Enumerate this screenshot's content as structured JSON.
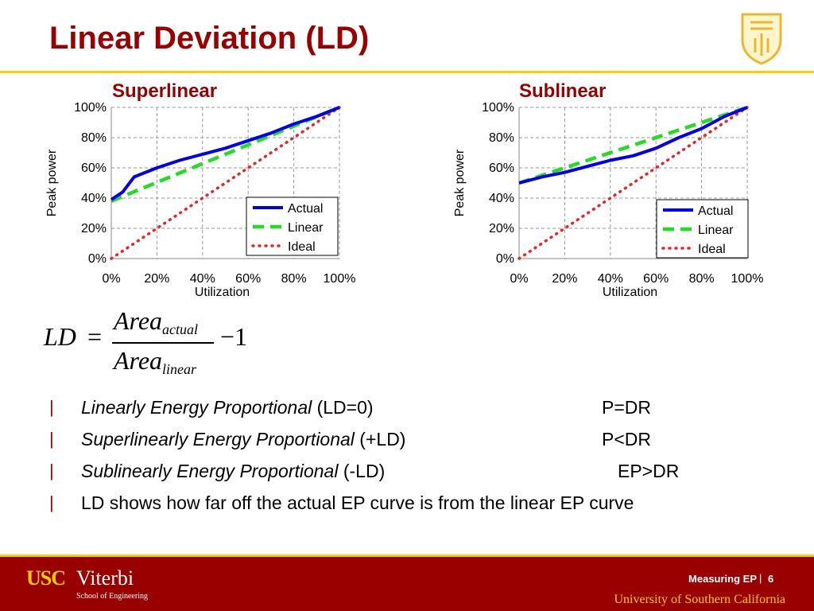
{
  "slide": {
    "title": "Linear Deviation (LD)",
    "footer_label": "Measuring EP",
    "footer_separator": "|",
    "page_number": "6",
    "university": "University of Southern California",
    "logo": {
      "usc": "USC",
      "viterbi": "Viterbi",
      "school": "School of Engineering"
    },
    "colors": {
      "title": "#990000",
      "accent": "#ffcc00",
      "footer": "#990000"
    },
    "icons": {
      "seal": "usc-seal-icon"
    }
  },
  "formula": {
    "lhs": "LD",
    "equals": "=",
    "numerator": "Area",
    "numerator_sub": "actual",
    "denominator": "Area",
    "denominator_sub": "linear",
    "tail": "−1"
  },
  "bullets": [
    {
      "marker": "|",
      "italic": "Linearly Energy Proportional",
      "plain": " (LD=0)",
      "right": "P=DR"
    },
    {
      "marker": "|",
      "italic": "Superlinearly Energy Proportional",
      "plain": " (+LD)",
      "right": "P<DR"
    },
    {
      "marker": "|",
      "italic": "Sublinearly Energy Proportional",
      "plain": " (-LD)",
      "right": "EP>DR"
    },
    {
      "marker": "|",
      "italic": "",
      "plain": "LD shows how far off the actual EP curve is from the linear EP curve",
      "right": ""
    }
  ],
  "chart_data": [
    {
      "type": "line",
      "title": "Superlinear",
      "xlabel": "Utilization",
      "ylabel": "Peak power",
      "xlim": [
        0,
        100
      ],
      "ylim": [
        0,
        100
      ],
      "x_ticks": [
        "0%",
        "20%",
        "40%",
        "60%",
        "80%",
        "100%"
      ],
      "y_ticks": [
        "0%",
        "20%",
        "40%",
        "60%",
        "80%",
        "100%"
      ],
      "grid": true,
      "legend": "bottom-right",
      "series": [
        {
          "name": "Actual",
          "color": "#0000ee",
          "style": "solid",
          "x": [
            0,
            5,
            10,
            20,
            30,
            40,
            50,
            60,
            70,
            80,
            90,
            100
          ],
          "y": [
            39,
            44,
            54,
            60,
            65,
            69,
            73,
            78,
            83,
            89,
            94,
            100
          ]
        },
        {
          "name": "Linear",
          "color": "#22dd22",
          "style": "dashed",
          "x": [
            0,
            100
          ],
          "y": [
            38,
            100
          ]
        },
        {
          "name": "Ideal",
          "color": "#ee2222",
          "style": "dotted",
          "x": [
            0,
            100
          ],
          "y": [
            0,
            100
          ]
        }
      ]
    },
    {
      "type": "line",
      "title": "Sublinear",
      "xlabel": "Utilization",
      "ylabel": "Peak power",
      "xlim": [
        0,
        100
      ],
      "ylim": [
        0,
        100
      ],
      "x_ticks": [
        "0%",
        "20%",
        "40%",
        "60%",
        "80%",
        "100%"
      ],
      "y_ticks": [
        "0%",
        "20%",
        "40%",
        "60%",
        "80%",
        "100%"
      ],
      "grid": true,
      "legend": "bottom-right",
      "series": [
        {
          "name": "Actual",
          "color": "#0000ee",
          "style": "solid",
          "x": [
            0,
            10,
            20,
            30,
            40,
            50,
            60,
            70,
            80,
            90,
            100
          ],
          "y": [
            50,
            54,
            57,
            61,
            65,
            68,
            73,
            80,
            86,
            94,
            100
          ]
        },
        {
          "name": "Linear",
          "color": "#22dd22",
          "style": "dashed",
          "x": [
            0,
            100
          ],
          "y": [
            50,
            100
          ]
        },
        {
          "name": "Ideal",
          "color": "#ee2222",
          "style": "dotted",
          "x": [
            0,
            100
          ],
          "y": [
            0,
            100
          ]
        }
      ]
    }
  ]
}
